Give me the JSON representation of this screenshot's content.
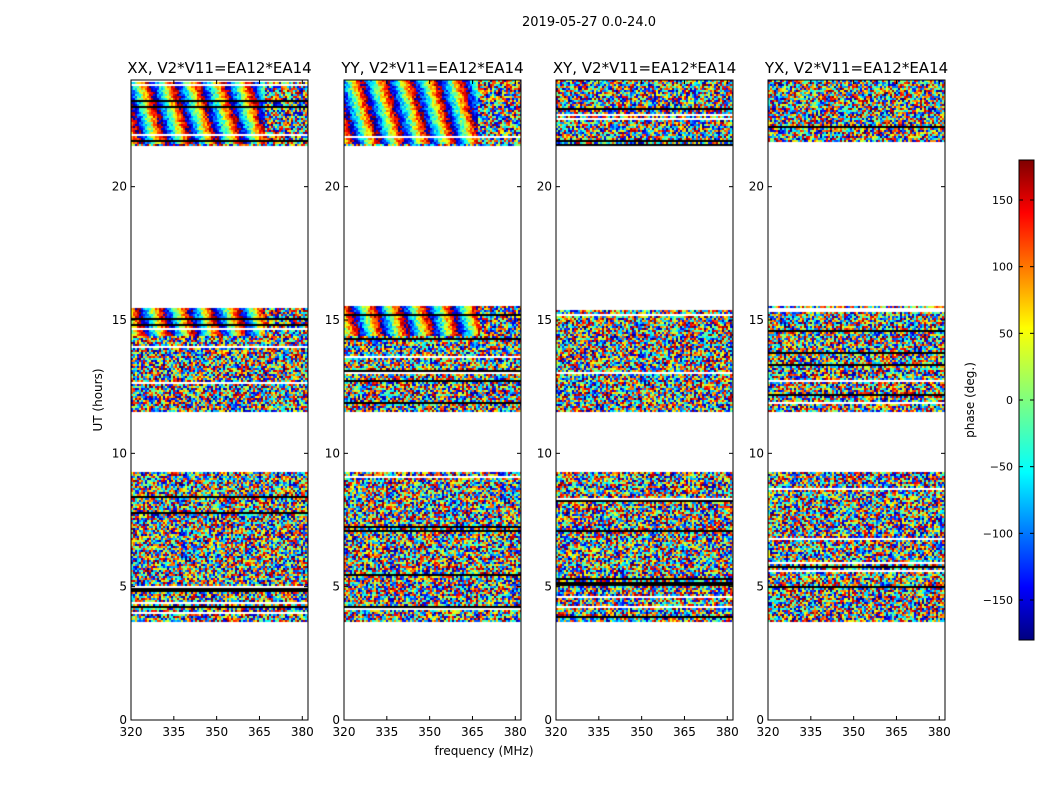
{
  "chart_data": {
    "type": "heatmap",
    "title": "2019-05-27 0.0-24.0",
    "xlabel": "frequency (MHz)",
    "ylabel": "UT (hours)",
    "xlim": [
      320,
      382
    ],
    "ylim": [
      0,
      24
    ],
    "xticks": [
      "320",
      "335",
      "350",
      "365",
      "380"
    ],
    "yticks": [
      "0",
      "5",
      "10",
      "15",
      "20"
    ],
    "panels": [
      {
        "title": "XX, V2*V11=EA12*EA14"
      },
      {
        "title": "YY, V2*V11=EA12*EA14"
      },
      {
        "title": "XY, V2*V11=EA12*EA14"
      },
      {
        "title": "YX, V2*V11=EA12*EA14"
      }
    ],
    "data_bands_hours": [
      [
        3.7,
        9.3
      ],
      [
        11.6,
        15.6
      ],
      [
        21.6,
        24.0
      ]
    ],
    "colorbar": {
      "label": "phase (deg.)",
      "range": [
        -180,
        180
      ],
      "ticks": [
        "150",
        "100",
        "50",
        "0",
        "−50",
        "−100",
        "−150"
      ],
      "colormap": "jet"
    }
  }
}
